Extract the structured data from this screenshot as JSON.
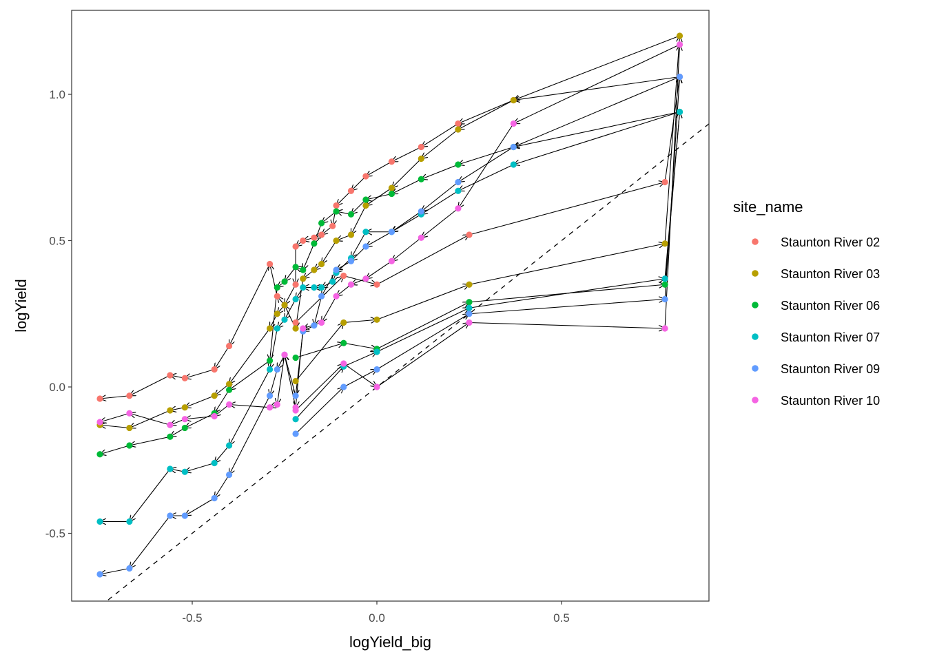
{
  "chart_data": {
    "type": "scatter",
    "subtype": "path-with-arrows",
    "title": "",
    "xlabel": "logYield_big",
    "ylabel": "logYield",
    "xlim": [
      -0.83,
      0.9
    ],
    "ylim": [
      -0.73,
      1.28
    ],
    "xticks": [
      -0.5,
      0.0,
      0.5
    ],
    "xtick_labels": [
      "-0.5",
      "0.0",
      "0.5"
    ],
    "yticks": [
      -0.5,
      0.0,
      0.5,
      1.0
    ],
    "ytick_labels": [
      "-0.5",
      "0.0",
      "0.5",
      "1.0"
    ],
    "grid": false,
    "reference_line": {
      "type": "identity",
      "label": "y = x",
      "style": "dashed"
    },
    "legend": {
      "title": "site_name",
      "position": "right"
    },
    "series": [
      {
        "name": "Staunton River 02",
        "color": "#F8766D",
        "x": [
          -0.22,
          -0.09,
          0.0,
          0.25,
          0.78,
          0.82,
          0.37,
          0.22,
          0.12,
          0.04,
          -0.03,
          -0.07,
          -0.11,
          -0.12,
          -0.15,
          -0.17,
          -0.2,
          -0.22,
          -0.22,
          -0.25,
          -0.27,
          -0.29,
          -0.4,
          -0.44,
          -0.52,
          -0.56,
          -0.67,
          -0.75
        ],
        "y": [
          0.22,
          0.38,
          0.35,
          0.52,
          0.7,
          1.06,
          0.98,
          0.9,
          0.82,
          0.77,
          0.72,
          0.67,
          0.62,
          0.55,
          0.52,
          0.51,
          0.5,
          0.48,
          0.35,
          0.28,
          0.31,
          0.42,
          0.14,
          0.06,
          0.03,
          0.04,
          -0.03,
          -0.04
        ]
      },
      {
        "name": "Staunton River 03",
        "color": "#B79F00",
        "x": [
          -0.22,
          -0.09,
          0.0,
          0.25,
          0.78,
          0.82,
          0.37,
          0.22,
          0.12,
          0.04,
          -0.03,
          -0.07,
          -0.11,
          -0.15,
          -0.17,
          -0.2,
          -0.22,
          -0.25,
          -0.27,
          -0.29,
          -0.4,
          -0.44,
          -0.52,
          -0.56,
          -0.67,
          -0.75
        ],
        "y": [
          0.02,
          0.22,
          0.23,
          0.35,
          0.49,
          1.2,
          0.98,
          0.88,
          0.78,
          0.68,
          0.62,
          0.52,
          0.5,
          0.42,
          0.4,
          0.37,
          0.2,
          0.28,
          0.25,
          0.2,
          0.01,
          -0.03,
          -0.07,
          -0.08,
          -0.14,
          -0.13
        ]
      },
      {
        "name": "Staunton River 06",
        "color": "#00BA38",
        "x": [
          -0.22,
          -0.09,
          0.0,
          0.25,
          0.78,
          0.82,
          0.37,
          0.22,
          0.12,
          0.04,
          -0.03,
          -0.07,
          -0.11,
          -0.15,
          -0.17,
          -0.2,
          -0.22,
          -0.25,
          -0.27,
          -0.29,
          -0.4,
          -0.44,
          -0.52,
          -0.56,
          -0.67,
          -0.75
        ],
        "y": [
          0.1,
          0.15,
          0.13,
          0.29,
          0.35,
          0.94,
          0.82,
          0.76,
          0.71,
          0.66,
          0.64,
          0.59,
          0.6,
          0.56,
          0.49,
          0.4,
          0.41,
          0.36,
          0.34,
          0.09,
          -0.01,
          -0.09,
          -0.14,
          -0.17,
          -0.2,
          -0.23
        ]
      },
      {
        "name": "Staunton River 07",
        "color": "#00BFC4",
        "x": [
          -0.22,
          -0.09,
          0.0,
          0.25,
          0.78,
          0.82,
          0.37,
          0.22,
          0.12,
          0.04,
          -0.03,
          -0.07,
          -0.11,
          -0.12,
          -0.15,
          -0.17,
          -0.2,
          -0.22,
          -0.25,
          -0.27,
          -0.29,
          -0.4,
          -0.44,
          -0.52,
          -0.56,
          -0.67,
          -0.75
        ],
        "y": [
          -0.11,
          0.07,
          0.12,
          0.27,
          0.37,
          0.94,
          0.76,
          0.67,
          0.59,
          0.53,
          0.53,
          0.44,
          0.39,
          0.36,
          0.34,
          0.34,
          0.34,
          0.3,
          0.23,
          0.2,
          0.06,
          -0.2,
          -0.26,
          -0.29,
          -0.28,
          -0.46,
          -0.46
        ]
      },
      {
        "name": "Staunton River 09",
        "color": "#619CFF",
        "x": [
          -0.22,
          -0.09,
          0.0,
          0.25,
          0.78,
          0.82,
          0.37,
          0.22,
          0.12,
          0.04,
          -0.03,
          -0.07,
          -0.11,
          -0.15,
          -0.17,
          -0.2,
          -0.22,
          -0.25,
          -0.27,
          -0.29,
          -0.4,
          -0.44,
          -0.52,
          -0.56,
          -0.67,
          -0.75
        ],
        "y": [
          -0.16,
          0.0,
          0.06,
          0.25,
          0.3,
          1.06,
          0.82,
          0.7,
          0.6,
          0.53,
          0.48,
          0.43,
          0.4,
          0.31,
          0.21,
          0.19,
          -0.03,
          0.11,
          0.06,
          -0.03,
          -0.3,
          -0.38,
          -0.44,
          -0.44,
          -0.62,
          -0.64
        ]
      },
      {
        "name": "Staunton River 10",
        "color": "#F564E3",
        "x": [
          -0.22,
          -0.09,
          0.0,
          0.25,
          0.78,
          0.82,
          0.37,
          0.22,
          0.12,
          0.04,
          -0.03,
          -0.07,
          -0.11,
          -0.15,
          -0.2,
          -0.22,
          -0.25,
          -0.27,
          -0.29,
          -0.4,
          -0.44,
          -0.52,
          -0.56,
          -0.67,
          -0.75
        ],
        "y": [
          -0.08,
          0.08,
          0.0,
          0.22,
          0.2,
          1.17,
          0.9,
          0.61,
          0.51,
          0.43,
          0.37,
          0.35,
          0.31,
          0.22,
          0.2,
          -0.07,
          0.11,
          -0.06,
          -0.07,
          -0.06,
          -0.1,
          -0.11,
          -0.13,
          -0.09,
          -0.12
        ]
      }
    ]
  }
}
